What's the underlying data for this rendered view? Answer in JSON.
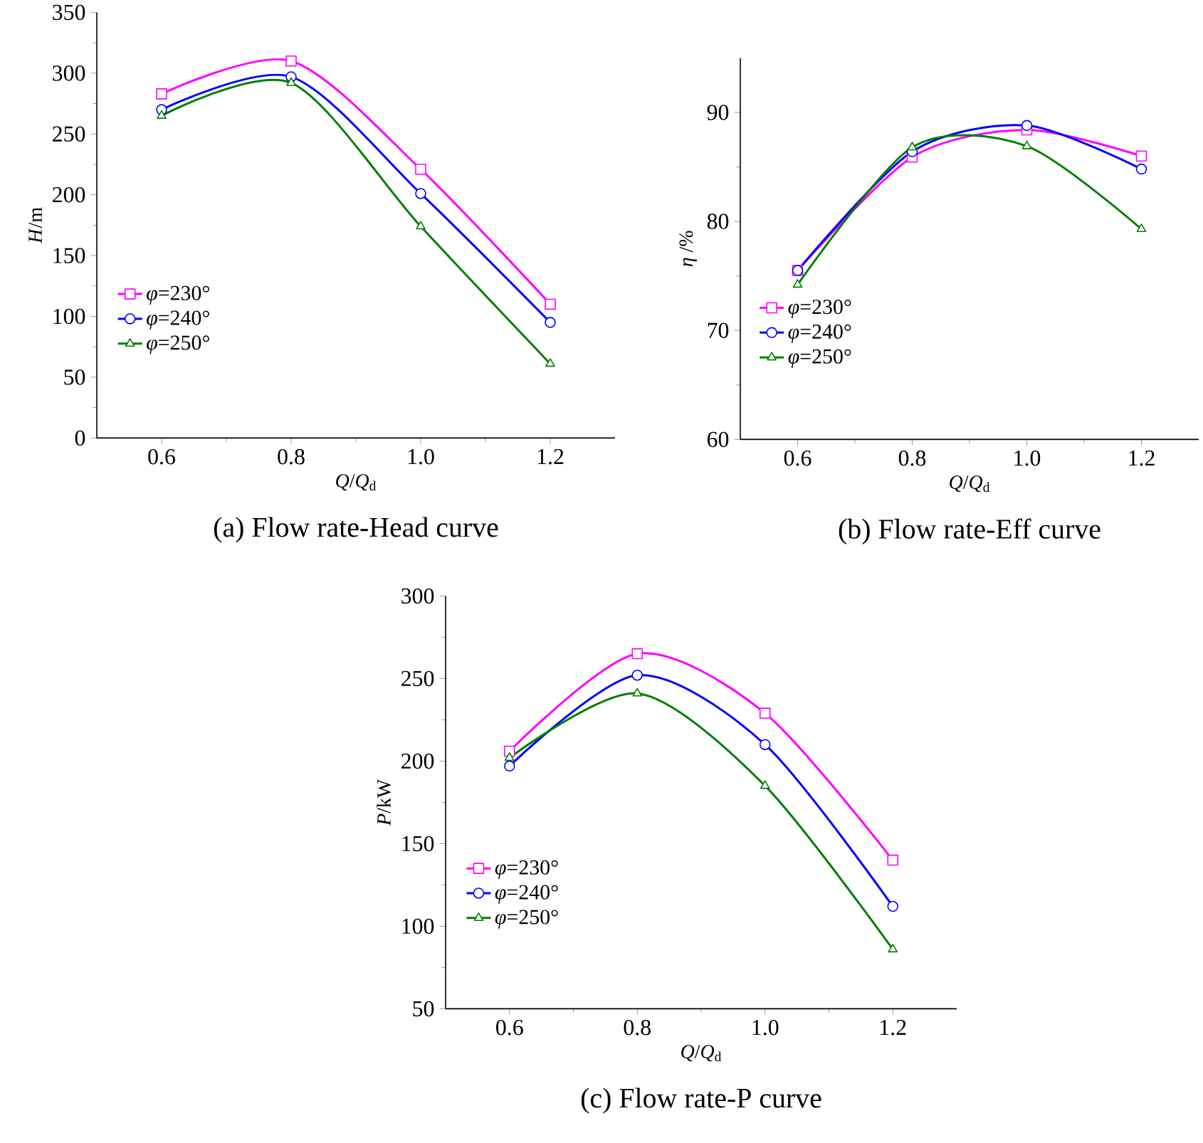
{
  "chart_data": [
    {
      "type": "line",
      "title": "(a) Flow rate-Head curve",
      "xlabel": "*Q*/*Q*$_{d}$",
      "ylabel": "*H*/m",
      "x": [
        0.6,
        0.8,
        1.0,
        1.2
      ],
      "xlim": [
        0.5,
        1.3
      ],
      "xticks": [
        {
          "value": 0.6,
          "label": "0.6"
        },
        {
          "value": 0.8,
          "label": "0.8"
        },
        {
          "value": 1.0,
          "label": "1.0"
        },
        {
          "value": 1.2,
          "label": "1.2"
        }
      ],
      "ylim": [
        0,
        350
      ],
      "yticks": [
        0,
        50,
        100,
        150,
        200,
        250,
        300,
        350
      ],
      "grid": false,
      "legend": "left",
      "series": [
        {
          "name": "*φ*=230°",
          "color": "#ff00ff",
          "marker": "square",
          "values": [
            283,
            310,
            221,
            110
          ]
        },
        {
          "name": "*φ*=240°",
          "color": "#0000ff",
          "marker": "circle",
          "values": [
            270,
            297,
            201,
            95
          ]
        },
        {
          "name": "*φ*=250°",
          "color": "#007f00",
          "marker": "triangle",
          "values": [
            265,
            292,
            174,
            61
          ]
        }
      ]
    },
    {
      "type": "line",
      "title": "(b) Flow rate-Eff curve",
      "xlabel": "*Q*/*Q*$_{d}$",
      "ylabel": "*η* /%",
      "x": [
        0.6,
        0.8,
        1.0,
        1.2
      ],
      "xlim": [
        0.5,
        1.3
      ],
      "xticks": [
        {
          "value": 0.6,
          "label": "0.6"
        },
        {
          "value": 0.8,
          "label": "0.8"
        },
        {
          "value": 1.0,
          "label": "1.0"
        },
        {
          "value": 1.2,
          "label": "1.2"
        }
      ],
      "ylim": [
        60,
        95
      ],
      "yticks": [
        60,
        70,
        80,
        90
      ],
      "grid": false,
      "legend": "left",
      "series": [
        {
          "name": "*φ*=230°",
          "color": "#ff00ff",
          "marker": "square",
          "values": [
            75.5,
            85.9,
            88.4,
            86.0
          ]
        },
        {
          "name": "*φ*=240°",
          "color": "#0000ff",
          "marker": "circle",
          "values": [
            75.5,
            86.4,
            88.8,
            84.8
          ]
        },
        {
          "name": "*φ*=250°",
          "color": "#007f00",
          "marker": "triangle",
          "values": [
            74.2,
            86.8,
            86.9,
            79.3
          ]
        }
      ]
    },
    {
      "type": "line",
      "title": "(c) Flow rate-P curve",
      "xlabel": "*Q*/*Q*$_{d}$",
      "ylabel": "*P*/kW",
      "x": [
        0.6,
        0.8,
        1.0,
        1.2
      ],
      "xlim": [
        0.5,
        1.3
      ],
      "xticks": [
        {
          "value": 0.6,
          "label": "0.6"
        },
        {
          "value": 0.8,
          "label": "0.8"
        },
        {
          "value": 1.0,
          "label": "1.0"
        },
        {
          "value": 1.2,
          "label": "1.2"
        }
      ],
      "ylim": [
        50,
        300
      ],
      "yticks": [
        50,
        100,
        150,
        200,
        250,
        300
      ],
      "grid": false,
      "legend": "left",
      "series": [
        {
          "name": "*φ*=230°",
          "color": "#ff00ff",
          "marker": "square",
          "values": [
            206,
            265,
            229,
            140
          ]
        },
        {
          "name": "*φ*=240°",
          "color": "#0000ff",
          "marker": "circle",
          "values": [
            197,
            252,
            210,
            112
          ]
        },
        {
          "name": "*φ*=250°",
          "color": "#007f00",
          "marker": "triangle",
          "values": [
            202,
            241,
            185,
            86
          ]
        }
      ]
    }
  ]
}
